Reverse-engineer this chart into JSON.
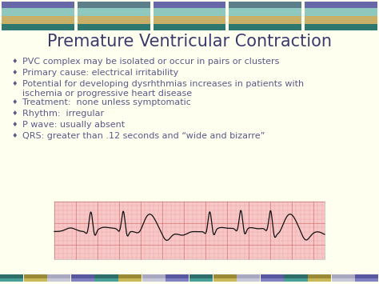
{
  "title": "Premature Ventricular Contraction",
  "title_color": "#3a3a6e",
  "title_fontsize": 15,
  "bg_color": "#fffff0",
  "bullet_color": "#5a5a8a",
  "bullet_fontsize": 8.0,
  "bullets": [
    "PVC complex may be isolated or occur in pairs or clusters",
    "Primary cause: electrical irritability",
    "Potential for developing dysrhthmias increases in patients with\nischemia or progressive heart disease",
    "Treatment:  none unless symptomatic",
    "Rhythm:  irregular",
    "P wave: usually absent",
    "QRS: greater than .12 seconds and “wide and bizarre”"
  ],
  "ecg_bg": "#f8c8c8",
  "ecg_line_color": "#111111",
  "header_block_colors": [
    [
      "#7070a8",
      "#a8c8c0",
      "#c8b870",
      "#3d7a78"
    ],
    [
      "#5b7e8a",
      "#a8c8c0",
      "#c8b870",
      "#3d7a78"
    ],
    [
      "#7070a8",
      "#a8c8c0",
      "#c8b870",
      "#3d7a78"
    ],
    [
      "#5b7e8a",
      "#a8c8c0",
      "#c8b870",
      "#3d7a78"
    ],
    [
      "#7070a8",
      "#a8c8c0",
      "#c8b870",
      "#3d7a78"
    ]
  ],
  "footer_cols": [
    "#2d6e68",
    "#9a8a38",
    "#a8a8c0",
    "#5858a0",
    "#2d6e68",
    "#9a8a38",
    "#a8a8c0",
    "#5858a0",
    "#2d6e68",
    "#9a8a38",
    "#a8a8c0",
    "#5858a0",
    "#2d6e68",
    "#9a8a38",
    "#a8a8c0",
    "#5858a0",
    "#2d6e68",
    "#9a8a38",
    "#a8a8c0"
  ]
}
